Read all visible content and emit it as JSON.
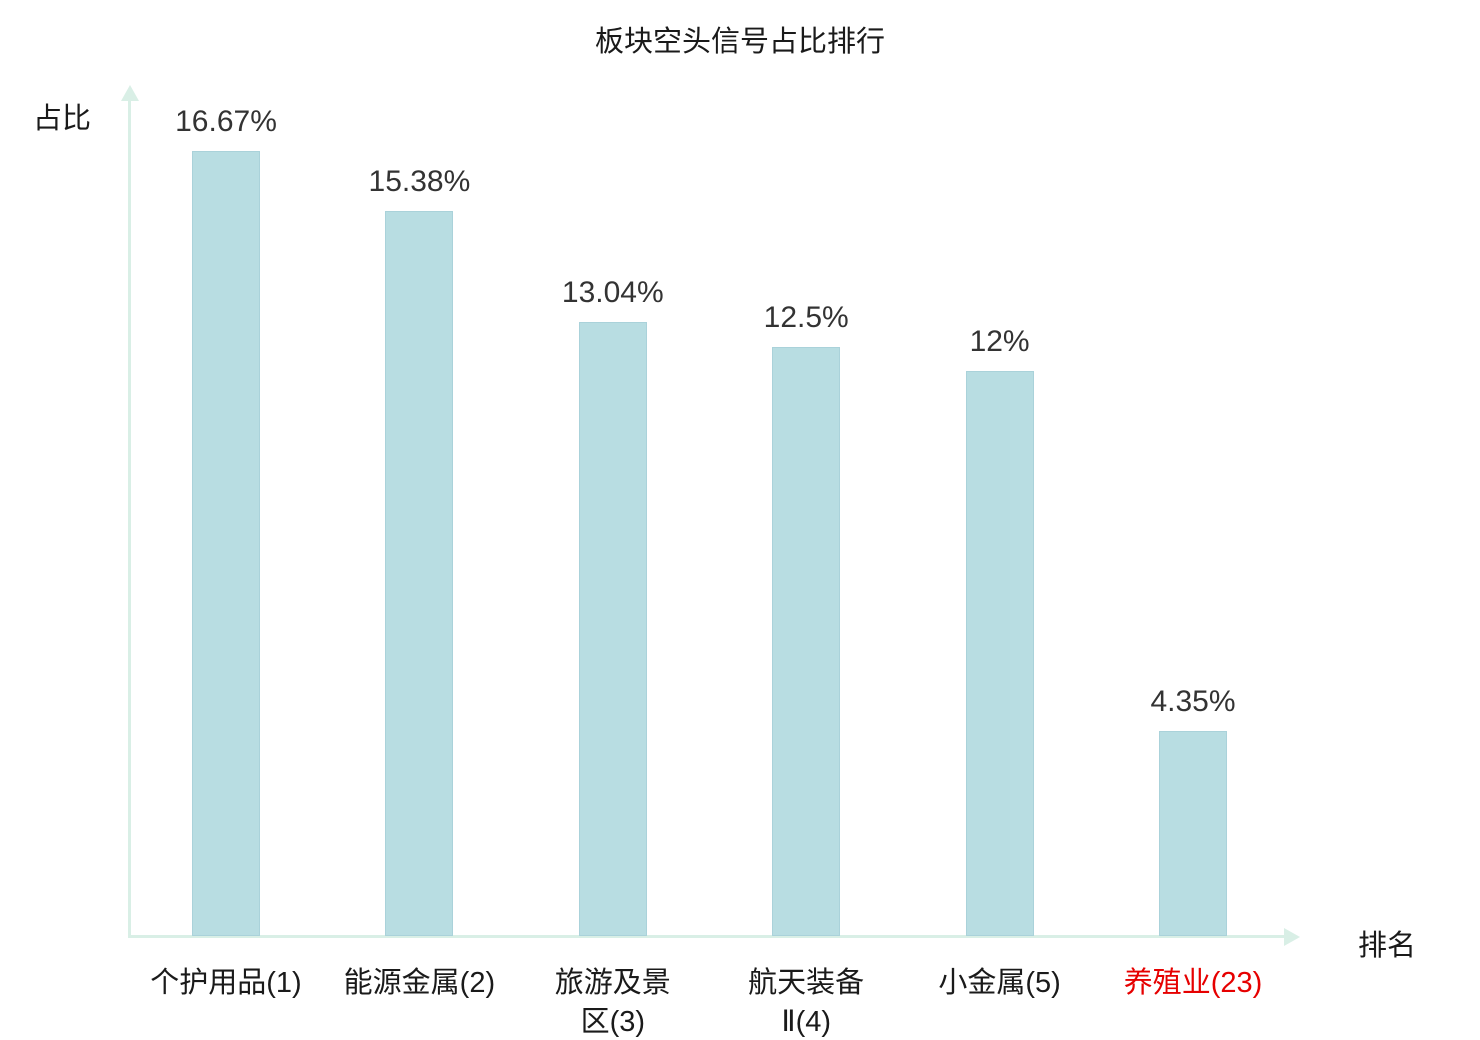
{
  "chart_data": {
    "type": "bar",
    "title": "板块空头信号占比排行",
    "xlabel": "排名",
    "ylabel": "占比",
    "categories": [
      "个护用品(1)",
      "能源金属(2)",
      "旅游及景区(3)",
      "航天装备Ⅱ(4)",
      "小金属(5)",
      "养殖业(23)"
    ],
    "category_display": [
      "个护用品(1)",
      "能源金属(2)",
      "旅游及景\n区(3)",
      "航天装备\nⅡ(4)",
      "小金属(5)",
      "养殖业(23)"
    ],
    "values": [
      16.67,
      15.38,
      13.04,
      12.5,
      12,
      4.35
    ],
    "value_labels": [
      "16.67%",
      "15.38%",
      "13.04%",
      "12.5%",
      "12%",
      "4.35%"
    ],
    "ylim": [
      0,
      18
    ],
    "grid": false,
    "legend": "none",
    "bar_color": "#b8dde2",
    "axis_color": "#d9efe6",
    "value_label_color": "#333333",
    "category_label_color": "#1a1a1a",
    "highlight_index": 5,
    "highlight_color": "#e60000"
  }
}
